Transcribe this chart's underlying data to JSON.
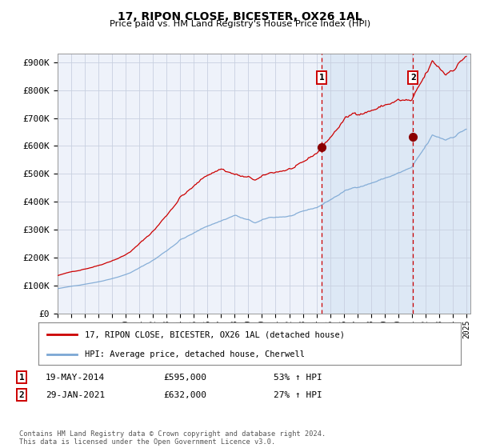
{
  "title": "17, RIPON CLOSE, BICESTER, OX26 1AL",
  "subtitle": "Price paid vs. HM Land Registry's House Price Index (HPI)",
  "legend_line1": "17, RIPON CLOSE, BICESTER, OX26 1AL (detached house)",
  "legend_line2": "HPI: Average price, detached house, Cherwell",
  "sale1_date": "19-MAY-2014",
  "sale1_price": 595000,
  "sale1_label": "53% ↑ HPI",
  "sale2_date": "29-JAN-2021",
  "sale2_price": 632000,
  "sale2_label": "27% ↑ HPI",
  "ylabel_ticks": [
    "£0",
    "£100K",
    "£200K",
    "£300K",
    "£400K",
    "£500K",
    "£600K",
    "£700K",
    "£800K",
    "£900K"
  ],
  "ytick_vals": [
    0,
    100000,
    200000,
    300000,
    400000,
    500000,
    600000,
    700000,
    800000,
    900000
  ],
  "sale1_x": 2014.38,
  "sale2_x": 2021.08,
  "background_color": "#ffffff",
  "plot_bg_color": "#eef2fa",
  "grid_color": "#c8d0e0",
  "red_line_color": "#cc0000",
  "blue_line_color": "#7ba7d4",
  "shade_color": "#dde8f5",
  "footer_text": "Contains HM Land Registry data © Crown copyright and database right 2024.\nThis data is licensed under the Open Government Licence v3.0."
}
